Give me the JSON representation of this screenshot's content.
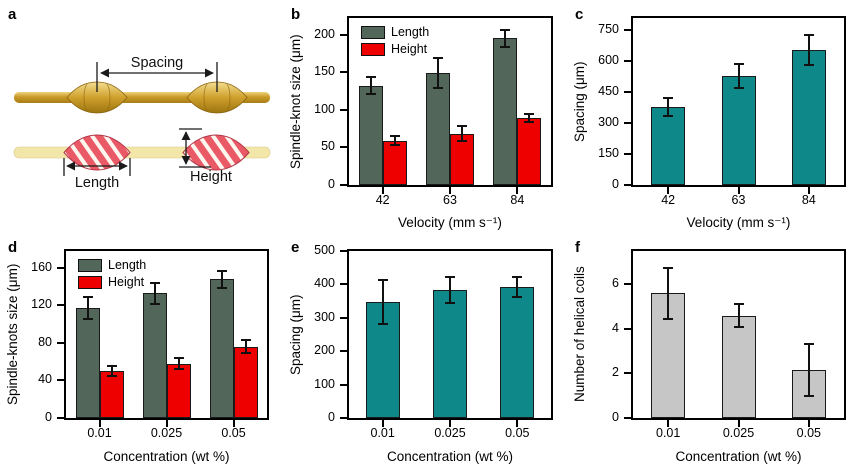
{
  "figure": {
    "background": "#ffffff",
    "panels": [
      {
        "letter": "a"
      },
      {
        "letter": "b"
      },
      {
        "letter": "c"
      },
      {
        "letter": "d"
      },
      {
        "letter": "e"
      },
      {
        "letter": "f"
      }
    ]
  },
  "panel_a": {
    "spacing_label": "Spacing",
    "length_label": "Length",
    "height_label": "Height",
    "colors": {
      "fiber_gold": "#c99a28",
      "fiber_pale": "#f2e7a9",
      "knot_red": "#ea5a66",
      "stripe_white": "#fdf6ee",
      "annotation": "#1a1a1a"
    }
  },
  "chart_data": [
    {
      "id": "b",
      "type": "bar",
      "ylabel": "Spindle-knot size (μm)",
      "xlabel": "Velocity (mm s⁻¹)",
      "categories": [
        "42",
        "63",
        "84"
      ],
      "ylim": [
        0,
        222
      ],
      "yticks": [
        0,
        50,
        100,
        150,
        200
      ],
      "grid": false,
      "legend": true,
      "legend_position": "top-left",
      "series": [
        {
          "name": "Length",
          "color": "#52665a",
          "values": [
            132,
            149,
            195
          ],
          "errors": [
            11,
            20,
            11
          ]
        },
        {
          "name": "Height",
          "color": "#ee0000",
          "values": [
            59,
            68,
            89
          ],
          "errors": [
            6,
            10,
            5
          ]
        }
      ]
    },
    {
      "id": "c",
      "type": "bar",
      "ylabel": "Spacing (μm)",
      "xlabel": "Velocity (mm s⁻¹)",
      "categories": [
        "42",
        "63",
        "84"
      ],
      "ylim": [
        0,
        810
      ],
      "yticks": [
        0,
        150,
        300,
        450,
        600,
        750
      ],
      "grid": false,
      "legend": false,
      "series": [
        {
          "name": "Spacing",
          "color": "#0e8888",
          "values": [
            378,
            527,
            655
          ],
          "errors": [
            45,
            58,
            74
          ]
        }
      ]
    },
    {
      "id": "d",
      "type": "bar",
      "ylabel": "Spindle-knots size (μm)",
      "xlabel": "Concentration (wt %)",
      "categories": [
        "0.01",
        "0.025",
        "0.05"
      ],
      "ylim": [
        0,
        178
      ],
      "yticks": [
        0,
        40,
        80,
        120,
        160
      ],
      "grid": false,
      "legend": true,
      "legend_position": "top-left",
      "series": [
        {
          "name": "Length",
          "color": "#52665a",
          "values": [
            117,
            133,
            148
          ],
          "errors": [
            12,
            11,
            9
          ]
        },
        {
          "name": "Height",
          "color": "#ee0000",
          "values": [
            50,
            58,
            76
          ],
          "errors": [
            5,
            6,
            7
          ]
        }
      ]
    },
    {
      "id": "e",
      "type": "bar",
      "ylabel": "Spacing (μm)",
      "xlabel": "Concentration (wt %)",
      "categories": [
        "0.01",
        "0.025",
        "0.05"
      ],
      "ylim": [
        0,
        500
      ],
      "yticks": [
        0,
        100,
        200,
        300,
        400,
        500
      ],
      "grid": false,
      "legend": false,
      "series": [
        {
          "name": "Spacing",
          "color": "#0e8888",
          "values": [
            346,
            383,
            391
          ],
          "errors": [
            66,
            38,
            30
          ]
        }
      ]
    },
    {
      "id": "f",
      "type": "bar",
      "ylabel": "Number of helical coils",
      "xlabel": "Concentration (wt %)",
      "categories": [
        "0.01",
        "0.025",
        "0.05"
      ],
      "ylim": [
        0,
        7.5
      ],
      "yticks": [
        0,
        2,
        4,
        6
      ],
      "grid": false,
      "legend": false,
      "series": [
        {
          "name": "Number of helical coils",
          "color": "#c6c6c6",
          "values": [
            5.6,
            4.6,
            2.15
          ],
          "errors": [
            1.15,
            0.5,
            1.18
          ]
        }
      ]
    }
  ]
}
